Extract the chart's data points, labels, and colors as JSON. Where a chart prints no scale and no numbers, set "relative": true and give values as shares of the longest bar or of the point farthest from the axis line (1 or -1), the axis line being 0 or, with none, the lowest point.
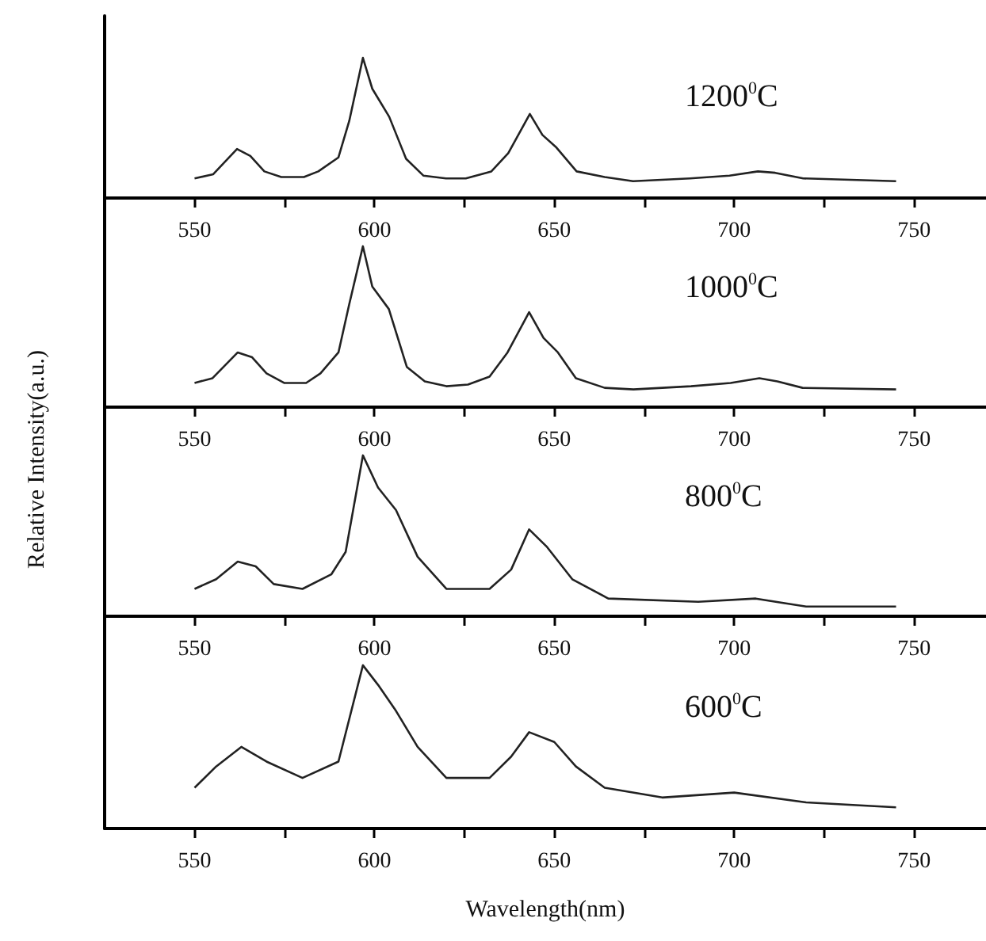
{
  "chart_data": [
    {
      "type": "line",
      "relative": true,
      "color": "#222222",
      "marker": "none",
      "line_style": "solid",
      "grid": false,
      "annotations": [
        "1200$^{0}$C"
      ],
      "xlim": [
        525,
        770
      ],
      "xticks": [
        550,
        {
          "value": 575,
          "label": null
        },
        600,
        {
          "value": 625,
          "label": null
        },
        650,
        {
          "value": 675,
          "label": null
        },
        700,
        {
          "value": 725,
          "label": null
        },
        750
      ],
      "x": [
        550,
        555.2,
        561.8,
        565.5,
        569.4,
        574.1,
        580.4,
        584.4,
        590,
        593,
        596.8,
        599.4,
        604.1,
        608.8,
        613.6,
        619.9,
        625.4,
        632.5,
        637.2,
        643.2,
        646.7,
        650.6,
        656.2,
        664,
        671.9,
        687.7,
        698.7,
        706.6,
        711.4,
        719.2,
        745
      ],
      "values": [
        0.14,
        0.17,
        0.35,
        0.3,
        0.19,
        0.15,
        0.15,
        0.19,
        0.29,
        0.55,
        1.0,
        0.78,
        0.58,
        0.28,
        0.16,
        0.14,
        0.14,
        0.19,
        0.32,
        0.6,
        0.45,
        0.36,
        0.19,
        0.15,
        0.12,
        0.14,
        0.16,
        0.19,
        0.18,
        0.14,
        0.12
      ]
    },
    {
      "type": "line",
      "relative": true,
      "color": "#222222",
      "marker": "none",
      "line_style": "solid",
      "grid": false,
      "annotations": [
        "1000$^{0}$C"
      ],
      "xlim": [
        525,
        770
      ],
      "xticks": [
        550,
        {
          "value": 575,
          "label": null
        },
        600,
        {
          "value": 625,
          "label": null
        },
        650,
        {
          "value": 675,
          "label": null
        },
        700,
        {
          "value": 725,
          "label": null
        },
        750
      ],
      "x": [
        550,
        555,
        562,
        566,
        570,
        575,
        581,
        585,
        590,
        593,
        596.8,
        599.4,
        604,
        609,
        614,
        620,
        626,
        632,
        637,
        643,
        647,
        651,
        656,
        664,
        672,
        688,
        699,
        707,
        712,
        719,
        745
      ],
      "values": [
        0.15,
        0.18,
        0.34,
        0.31,
        0.21,
        0.15,
        0.15,
        0.21,
        0.34,
        0.64,
        1.0,
        0.75,
        0.61,
        0.25,
        0.16,
        0.13,
        0.14,
        0.19,
        0.34,
        0.59,
        0.43,
        0.34,
        0.18,
        0.12,
        0.11,
        0.13,
        0.15,
        0.18,
        0.16,
        0.12,
        0.11
      ]
    },
    {
      "type": "line",
      "relative": true,
      "ylabel": "Relative Intensity(a.u.)",
      "color": "#222222",
      "marker": "none",
      "line_style": "solid",
      "grid": false,
      "annotations": [
        "800$^{0}$C"
      ],
      "xlim": [
        525,
        770
      ],
      "xticks": [
        550,
        {
          "value": 575,
          "label": null
        },
        600,
        {
          "value": 625,
          "label": null
        },
        650,
        {
          "value": 675,
          "label": null
        },
        700,
        {
          "value": 725,
          "label": null
        },
        750
      ],
      "x": [
        550,
        556,
        562,
        567,
        572,
        580,
        588,
        592,
        596.8,
        601,
        606,
        612,
        620,
        632,
        638,
        643,
        648,
        655,
        665,
        690,
        706,
        720,
        745
      ],
      "values": [
        0.17,
        0.23,
        0.34,
        0.31,
        0.2,
        0.17,
        0.26,
        0.4,
        1.0,
        0.8,
        0.66,
        0.37,
        0.17,
        0.17,
        0.29,
        0.54,
        0.43,
        0.23,
        0.11,
        0.09,
        0.11,
        0.06,
        0.06
      ]
    },
    {
      "type": "line",
      "relative": true,
      "xlabel": "Wavelength(nm)",
      "color": "#222222",
      "marker": "none",
      "line_style": "solid",
      "grid": false,
      "annotations": [
        "600$^{0}$C"
      ],
      "xlim": [
        525,
        770
      ],
      "xticks": [
        550,
        {
          "value": 575,
          "label": null
        },
        600,
        {
          "value": 625,
          "label": null
        },
        650,
        {
          "value": 675,
          "label": null
        },
        700,
        {
          "value": 725,
          "label": null
        },
        750
      ],
      "x": [
        550,
        556,
        563,
        570,
        580,
        590,
        596.8,
        601,
        606,
        612,
        620,
        632,
        638,
        643,
        650,
        656,
        664,
        680,
        700,
        720,
        745
      ],
      "values": [
        0.25,
        0.38,
        0.5,
        0.41,
        0.31,
        0.41,
        1.0,
        0.88,
        0.72,
        0.5,
        0.31,
        0.31,
        0.44,
        0.59,
        0.53,
        0.38,
        0.25,
        0.19,
        0.22,
        0.16,
        0.13
      ]
    }
  ]
}
